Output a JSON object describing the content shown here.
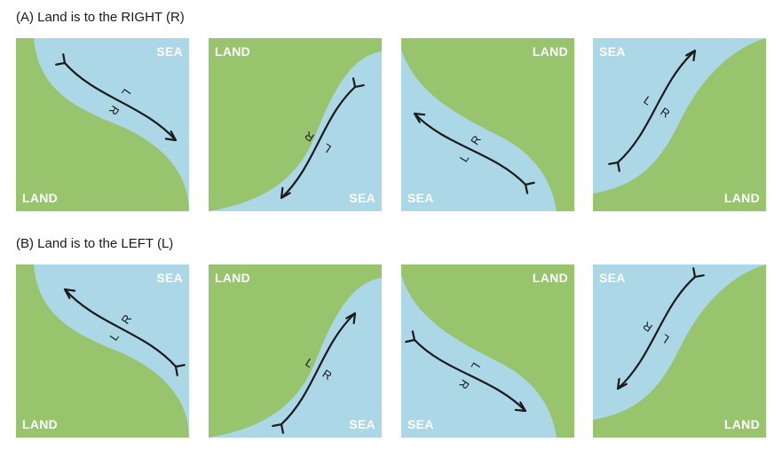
{
  "rows": [
    {
      "title": "(A) Land is to the RIGHT (R)",
      "panels": [
        {
          "labels": {
            "tr": "SEA",
            "bl": "LAND"
          },
          "side_labels": [
            "L",
            "R"
          ]
        },
        {
          "labels": {
            "tl": "LAND",
            "br": "SEA"
          },
          "side_labels": [
            "L",
            "R"
          ]
        },
        {
          "labels": {
            "tr": "LAND",
            "bl": "SEA"
          },
          "side_labels": [
            "L",
            "R"
          ]
        },
        {
          "labels": {
            "tl": "SEA",
            "br": "LAND"
          },
          "side_labels": [
            "L",
            "R"
          ]
        }
      ]
    },
    {
      "title": "(B) Land is to the LEFT (L)",
      "panels": [
        {
          "labels": {
            "tr": "SEA",
            "bl": "LAND"
          },
          "side_labels": [
            "L",
            "R"
          ]
        },
        {
          "labels": {
            "tl": "LAND",
            "br": "SEA"
          },
          "side_labels": [
            "L",
            "R"
          ]
        },
        {
          "labels": {
            "tr": "LAND",
            "bl": "SEA"
          },
          "side_labels": [
            "L",
            "R"
          ]
        },
        {
          "labels": {
            "tl": "SEA",
            "br": "LAND"
          },
          "side_labels": [
            "L",
            "R"
          ]
        }
      ]
    }
  ],
  "colors": {
    "land": "#98c46d",
    "sea": "#abd7e6",
    "arrow": "#1a1a1a",
    "corner_text": "#ffffff"
  }
}
